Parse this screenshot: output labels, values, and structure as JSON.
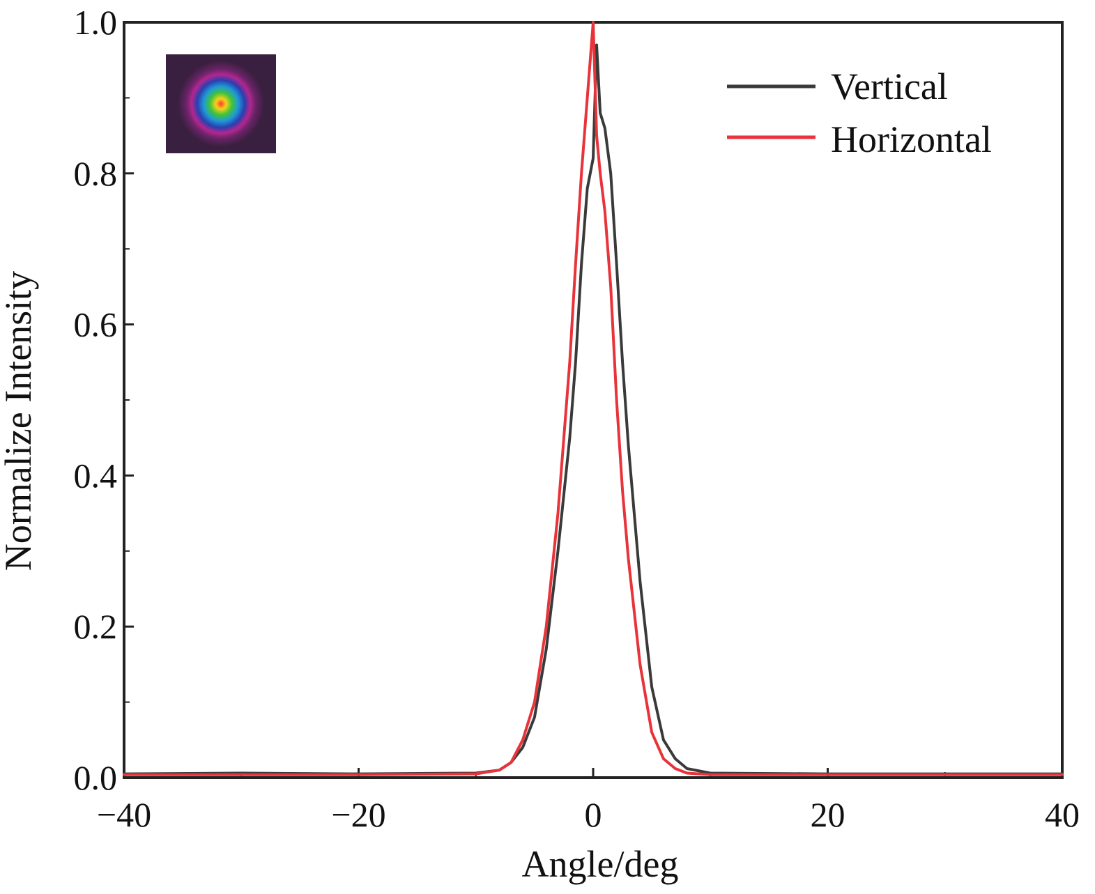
{
  "chart_data": {
    "type": "line",
    "title": "",
    "xlabel": "Angle/deg",
    "ylabel": "Normalize Intensity",
    "xlim": [
      -40,
      40
    ],
    "ylim": [
      0.0,
      1.0
    ],
    "x_ticks": [
      -40,
      -20,
      0,
      20,
      40
    ],
    "x_tick_labels": [
      "−40",
      "−20",
      "0",
      "20",
      "40"
    ],
    "x_minor_ticks": [
      -30,
      -10,
      10,
      30
    ],
    "y_ticks": [
      0.0,
      0.2,
      0.4,
      0.6,
      0.8,
      1.0
    ],
    "y_tick_labels": [
      "0.0",
      "0.2",
      "0.4",
      "0.6",
      "0.8",
      "1.0"
    ],
    "y_minor_ticks": [
      0.1,
      0.3,
      0.5,
      0.7,
      0.9
    ],
    "grid": false,
    "legend_position": "top-right",
    "inset": "beam-profile-image",
    "series": [
      {
        "name": "Vertical",
        "color": "#3a3a3a",
        "x": [
          -40,
          -30,
          -20,
          -10,
          -8,
          -7,
          -6,
          -5,
          -4,
          -3,
          -2,
          -1.5,
          -1,
          -0.5,
          0,
          0.3,
          0.6,
          1,
          1.5,
          2,
          2.5,
          3,
          4,
          5,
          6,
          7,
          8,
          10,
          20,
          30,
          40
        ],
        "y": [
          0.005,
          0.006,
          0.005,
          0.006,
          0.01,
          0.02,
          0.04,
          0.08,
          0.17,
          0.3,
          0.45,
          0.55,
          0.68,
          0.78,
          0.82,
          0.97,
          0.88,
          0.86,
          0.8,
          0.68,
          0.55,
          0.44,
          0.26,
          0.12,
          0.05,
          0.025,
          0.012,
          0.006,
          0.005,
          0.005,
          0.005
        ]
      },
      {
        "name": "Horizontal",
        "color": "#e8333a",
        "x": [
          -40,
          -30,
          -20,
          -10,
          -8,
          -7,
          -6,
          -5,
          -4,
          -3,
          -2,
          -1.5,
          -1,
          -0.5,
          0,
          0.3,
          0.6,
          1,
          1.5,
          2,
          2.5,
          3,
          4,
          5,
          6,
          7,
          8,
          10,
          20,
          30,
          40
        ],
        "y": [
          0.004,
          0.004,
          0.004,
          0.005,
          0.01,
          0.02,
          0.05,
          0.1,
          0.2,
          0.35,
          0.55,
          0.68,
          0.8,
          0.9,
          1.0,
          0.85,
          0.8,
          0.75,
          0.65,
          0.5,
          0.38,
          0.29,
          0.15,
          0.06,
          0.025,
          0.012,
          0.006,
          0.004,
          0.004,
          0.004,
          0.004
        ]
      }
    ]
  }
}
